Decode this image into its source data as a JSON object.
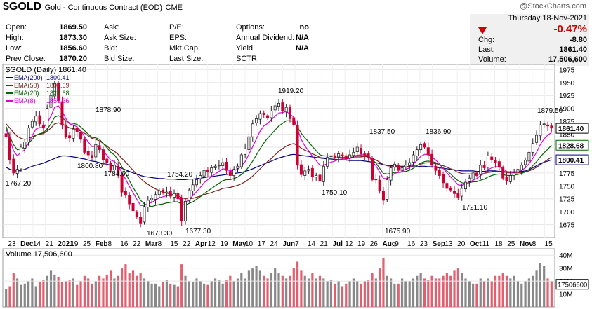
{
  "header": {
    "symbol": "$GOLD",
    "description": "Gold - Continuous Contract (EOD)",
    "exchange": "CME",
    "brand": "@StockCharts.com"
  },
  "quote": {
    "open_label": "Open:",
    "open": "1869.50",
    "high_label": "High:",
    "high": "1873.30",
    "low_label": "Low:",
    "low": "1856.60",
    "prev_close_label": "Prev Close:",
    "prev_close": "1870.20",
    "ask_label": "Ask:",
    "ask": "",
    "ask_size_label": "Ask Size:",
    "ask_size": "",
    "bid_label": "Bid:",
    "bid": "",
    "bid_size_label": "Bid Size:",
    "bid_size": "",
    "pe_label": "P/E:",
    "pe": "",
    "eps_label": "EPS:",
    "eps": "",
    "mkt_cap_label": "Mkt Cap:",
    "mkt_cap": "",
    "last_size_label": "Last Size:",
    "last_size": "",
    "options_label": "Options:",
    "options": "no",
    "dividend_label": "Annual Dividend:",
    "dividend": "N/A",
    "yield_label": "Yield:",
    "yield": "N/A",
    "sctr_label": "SCTR:",
    "sctr": ""
  },
  "summary": {
    "date": "Thursday  18-Nov-2021",
    "pct_change": "-0.47%",
    "chg_label": "Chg:",
    "chg": "-8.80",
    "last_label": "Last:",
    "last": "1861.40",
    "volume_label": "Volume:",
    "volume": "17,506,600"
  },
  "colors": {
    "up": "#222222",
    "down": "#cc0033",
    "ema200": "#00007f",
    "ema50": "#7f1f1f",
    "ema20": "#006400",
    "ema8": "#dd00dd",
    "vol_up": "#888888",
    "vol_down": "#e06070"
  },
  "chart_data": {
    "type": "candlestick",
    "title": "$GOLD (Daily) 1861.40",
    "ylim": [
      1650,
      1985
    ],
    "y_ticks": [
      "1975",
      "1950",
      "1925",
      "1900",
      "1875",
      "1850",
      "1825",
      "1800",
      "1775",
      "1750",
      "1725",
      "1700",
      "1675"
    ],
    "x_tick_labels": [
      "23",
      "Dec",
      "14",
      "21",
      "2021",
      "19",
      "25",
      "Feb",
      "8",
      "16",
      "22",
      "Mar",
      "8",
      "15",
      "22",
      "Apr",
      "12",
      "19",
      "May",
      "10",
      "17",
      "24",
      "Jun",
      "7",
      "14",
      "21",
      "Jul",
      "12",
      "19",
      "26",
      "Aug",
      "9",
      "16",
      "23",
      "Sep",
      "13",
      "20",
      "Oct",
      "11",
      "18",
      "25",
      "Nov",
      "8",
      "15"
    ],
    "x_tick_bold": [
      "Dec",
      "2021",
      "Feb",
      "Mar",
      "Apr",
      "May",
      "Jun",
      "Jul",
      "Aug",
      "Sep",
      "Oct",
      "Nov"
    ],
    "legend": [
      {
        "name": "EMA(200)",
        "value": "1800.41",
        "color": "#00007f"
      },
      {
        "name": "EMA(50)",
        "value": "1805.69",
        "color": "#7f1f1f"
      },
      {
        "name": "EMA(20)",
        "value": "1828.68",
        "color": "#006400"
      },
      {
        "name": "EMA(8)",
        "value": "1853.36",
        "color": "#dd00dd"
      }
    ],
    "annotations": [
      "1767.20",
      "1800.80",
      "1878.90",
      "1784.60",
      "1673.30",
      "1754.20",
      "1677.30",
      "1919.20",
      "1750.10",
      "1837.50",
      "1675.90",
      "1836.90",
      "1721.10",
      "1879.50"
    ],
    "price_tags": [
      {
        "value": "1861.40",
        "price": 1861.4,
        "style": "last"
      },
      {
        "value": "1828.68",
        "price": 1828.68,
        "style": "ema20"
      },
      {
        "value": "1800.41",
        "price": 1800.41,
        "style": "ema200"
      }
    ],
    "closes": [
      1845,
      1800,
      1775,
      1782,
      1825,
      1835,
      1862,
      1875,
      1885,
      1870,
      1862,
      1900,
      1925,
      1948,
      1915,
      1868,
      1845,
      1843,
      1860,
      1855,
      1840,
      1815,
      1810,
      1805,
      1830,
      1820,
      1800,
      1795,
      1780,
      1790,
      1770,
      1738,
      1733,
      1715,
      1702,
      1690,
      1678,
      1710,
      1722,
      1726,
      1733,
      1740,
      1737,
      1738,
      1730,
      1735,
      1725,
      1683,
      1720,
      1742,
      1752,
      1762,
      1770,
      1780,
      1778,
      1785,
      1788,
      1790,
      1795,
      1780,
      1770,
      1782,
      1788,
      1810,
      1822,
      1845,
      1870,
      1880,
      1890,
      1888,
      1882,
      1895,
      1905,
      1910,
      1895,
      1902,
      1880,
      1868,
      1790,
      1772,
      1779,
      1782,
      1768,
      1770,
      1760,
      1788,
      1805,
      1808,
      1805,
      1812,
      1808,
      1802,
      1810,
      1815,
      1825,
      1812,
      1810,
      1805,
      1762,
      1763,
      1740,
      1722,
      1762,
      1785,
      1792,
      1780,
      1785,
      1790,
      1795,
      1810,
      1820,
      1830,
      1825,
      1810,
      1790,
      1780,
      1770,
      1756,
      1745,
      1742,
      1735,
      1728,
      1745,
      1757,
      1765,
      1775,
      1770,
      1790,
      1785,
      1808,
      1800,
      1795,
      1786,
      1765,
      1760,
      1770,
      1775,
      1782,
      1790,
      1800,
      1815,
      1832,
      1848,
      1868,
      1870,
      1866,
      1862
    ],
    "emas": {
      "ema200": [
        1786,
        1782,
        1780,
        1778,
        1780,
        1782,
        1785,
        1788,
        1790,
        1792,
        1794,
        1797,
        1800,
        1803,
        1806,
        1808,
        1808,
        1807,
        1806,
        1805,
        1803,
        1802,
        1800,
        1798,
        1797,
        1795,
        1793,
        1792,
        1790,
        1788,
        1786,
        1784,
        1781,
        1778,
        1775,
        1773,
        1770,
        1768,
        1767,
        1766,
        1765,
        1764,
        1764,
        1763,
        1763,
        1763,
        1762,
        1762,
        1762,
        1763,
        1763,
        1764,
        1765,
        1766,
        1767,
        1768,
        1769,
        1770,
        1771,
        1772,
        1773,
        1774,
        1775,
        1776,
        1778,
        1780,
        1783,
        1786,
        1789,
        1792,
        1795,
        1798,
        1801,
        1804,
        1806,
        1808,
        1810,
        1811,
        1810,
        1809,
        1808,
        1807,
        1806,
        1805,
        1804,
        1803,
        1802,
        1802,
        1801,
        1801,
        1800,
        1800,
        1799,
        1799,
        1799,
        1799,
        1798,
        1797,
        1796,
        1795,
        1793,
        1791,
        1790,
        1789,
        1789,
        1788,
        1788,
        1788,
        1787,
        1787,
        1787,
        1788,
        1788,
        1787,
        1787,
        1786,
        1785,
        1784,
        1783,
        1782,
        1781,
        1780,
        1779,
        1779,
        1779,
        1779,
        1778,
        1778,
        1778,
        1779,
        1779,
        1779,
        1778,
        1778,
        1777,
        1777,
        1777,
        1777,
        1778,
        1779,
        1781,
        1785,
        1789,
        1793,
        1796,
        1798,
        1800.41
      ],
      "ema50": [
        1870,
        1862,
        1853,
        1846,
        1842,
        1840,
        1842,
        1845,
        1848,
        1850,
        1851,
        1856,
        1862,
        1870,
        1872,
        1870,
        1866,
        1862,
        1861,
        1859,
        1856,
        1852,
        1847,
        1842,
        1840,
        1837,
        1832,
        1827,
        1821,
        1817,
        1811,
        1803,
        1796,
        1788,
        1780,
        1772,
        1764,
        1758,
        1753,
        1748,
        1744,
        1741,
        1738,
        1736,
        1734,
        1733,
        1731,
        1727,
        1725,
        1725,
        1726,
        1728,
        1730,
        1733,
        1735,
        1737,
        1740,
        1742,
        1745,
        1746,
        1747,
        1749,
        1751,
        1754,
        1758,
        1763,
        1769,
        1776,
        1783,
        1790,
        1797,
        1803,
        1810,
        1817,
        1822,
        1827,
        1830,
        1832,
        1828,
        1823,
        1819,
        1816,
        1812,
        1809,
        1805,
        1804,
        1804,
        1804,
        1804,
        1805,
        1805,
        1805,
        1805,
        1806,
        1806,
        1806,
        1807,
        1806,
        1803,
        1800,
        1796,
        1791,
        1789,
        1788,
        1788,
        1787,
        1787,
        1787,
        1788,
        1789,
        1790,
        1792,
        1794,
        1795,
        1794,
        1793,
        1791,
        1789,
        1786,
        1783,
        1780,
        1776,
        1774,
        1773,
        1773,
        1773,
        1772,
        1773,
        1774,
        1776,
        1777,
        1778,
        1778,
        1777,
        1776,
        1775,
        1775,
        1775,
        1776,
        1777,
        1779,
        1782,
        1786,
        1791,
        1796,
        1801,
        1805.69
      ],
      "ema20": [
        1865,
        1845,
        1830,
        1820,
        1822,
        1825,
        1832,
        1840,
        1848,
        1851,
        1853,
        1860,
        1870,
        1883,
        1886,
        1882,
        1876,
        1872,
        1871,
        1869,
        1864,
        1857,
        1850,
        1844,
        1843,
        1840,
        1832,
        1824,
        1815,
        1810,
        1800,
        1787,
        1774,
        1760,
        1747,
        1735,
        1722,
        1715,
        1712,
        1710,
        1712,
        1714,
        1715,
        1717,
        1718,
        1719,
        1719,
        1714,
        1713,
        1716,
        1719,
        1724,
        1729,
        1735,
        1740,
        1745,
        1750,
        1755,
        1760,
        1762,
        1762,
        1764,
        1767,
        1772,
        1778,
        1787,
        1798,
        1810,
        1822,
        1833,
        1842,
        1850,
        1858,
        1866,
        1871,
        1876,
        1876,
        1875,
        1864,
        1852,
        1843,
        1835,
        1826,
        1818,
        1810,
        1808,
        1808,
        1808,
        1808,
        1808,
        1808,
        1808,
        1808,
        1808,
        1809,
        1810,
        1810,
        1808,
        1801,
        1794,
        1784,
        1774,
        1773,
        1774,
        1776,
        1776,
        1777,
        1778,
        1780,
        1784,
        1789,
        1794,
        1797,
        1798,
        1797,
        1795,
        1791,
        1785,
        1779,
        1773,
        1766,
        1760,
        1756,
        1755,
        1756,
        1758,
        1758,
        1761,
        1763,
        1767,
        1770,
        1772,
        1773,
        1772,
        1770,
        1770,
        1771,
        1772,
        1774,
        1777,
        1782,
        1789,
        1797,
        1806,
        1814,
        1821,
        1828.68
      ],
      "ema8": [
        1860,
        1840,
        1818,
        1808,
        1815,
        1820,
        1833,
        1847,
        1860,
        1863,
        1863,
        1872,
        1885,
        1902,
        1905,
        1895,
        1880,
        1870,
        1868,
        1864,
        1857,
        1845,
        1835,
        1826,
        1827,
        1825,
        1818,
        1809,
        1800,
        1797,
        1790,
        1775,
        1763,
        1749,
        1737,
        1724,
        1712,
        1712,
        1715,
        1718,
        1722,
        1727,
        1729,
        1731,
        1731,
        1732,
        1730,
        1718,
        1718,
        1724,
        1731,
        1739,
        1747,
        1756,
        1762,
        1768,
        1773,
        1778,
        1783,
        1782,
        1779,
        1780,
        1782,
        1789,
        1797,
        1811,
        1826,
        1841,
        1856,
        1866,
        1871,
        1878,
        1885,
        1891,
        1892,
        1894,
        1889,
        1883,
        1860,
        1840,
        1827,
        1818,
        1807,
        1799,
        1790,
        1790,
        1793,
        1796,
        1798,
        1801,
        1802,
        1802,
        1803,
        1805,
        1809,
        1810,
        1810,
        1808,
        1797,
        1789,
        1777,
        1764,
        1764,
        1768,
        1774,
        1776,
        1778,
        1782,
        1785,
        1792,
        1799,
        1807,
        1811,
        1811,
        1806,
        1800,
        1793,
        1784,
        1775,
        1767,
        1760,
        1752,
        1751,
        1753,
        1757,
        1761,
        1764,
        1770,
        1774,
        1781,
        1785,
        1787,
        1787,
        1783,
        1778,
        1776,
        1776,
        1777,
        1780,
        1785,
        1793,
        1803,
        1815,
        1830,
        1841,
        1848,
        1853.36
      ]
    },
    "volume": {
      "label": "Volume 17,506,600",
      "ylim": [
        0,
        45
      ],
      "y_ticks": [
        "40M",
        "30M",
        "20M",
        "10M"
      ],
      "tag": "17506600",
      "unit": "M",
      "values": [
        14,
        16,
        26,
        22,
        17,
        18,
        20,
        22,
        16,
        19,
        21,
        24,
        28,
        25,
        23,
        19,
        20,
        21,
        22,
        17,
        20,
        24,
        22,
        18,
        20,
        24,
        22,
        25,
        28,
        22,
        24,
        30,
        33,
        26,
        28,
        24,
        26,
        22,
        20,
        18,
        18,
        16,
        19,
        21,
        18,
        17,
        16,
        33,
        24,
        20,
        19,
        22,
        20,
        18,
        17,
        20,
        22,
        21,
        18,
        21,
        24,
        20,
        22,
        26,
        22,
        28,
        30,
        32,
        28,
        24,
        22,
        26,
        30,
        26,
        24,
        22,
        24,
        30,
        35,
        28,
        24,
        22,
        26,
        22,
        24,
        22,
        20,
        21,
        18,
        20,
        16,
        18,
        20,
        22,
        20,
        18,
        20,
        21,
        26,
        22,
        30,
        38,
        24,
        22,
        18,
        18,
        22,
        20,
        20,
        22,
        24,
        26,
        22,
        21,
        24,
        22,
        22,
        24,
        26,
        24,
        28,
        30,
        26,
        22,
        20,
        18,
        18,
        22,
        20,
        22,
        20,
        24,
        24,
        26,
        24,
        22,
        24,
        20,
        18,
        20,
        22,
        24,
        28,
        34,
        32,
        22,
        20
      ]
    }
  }
}
